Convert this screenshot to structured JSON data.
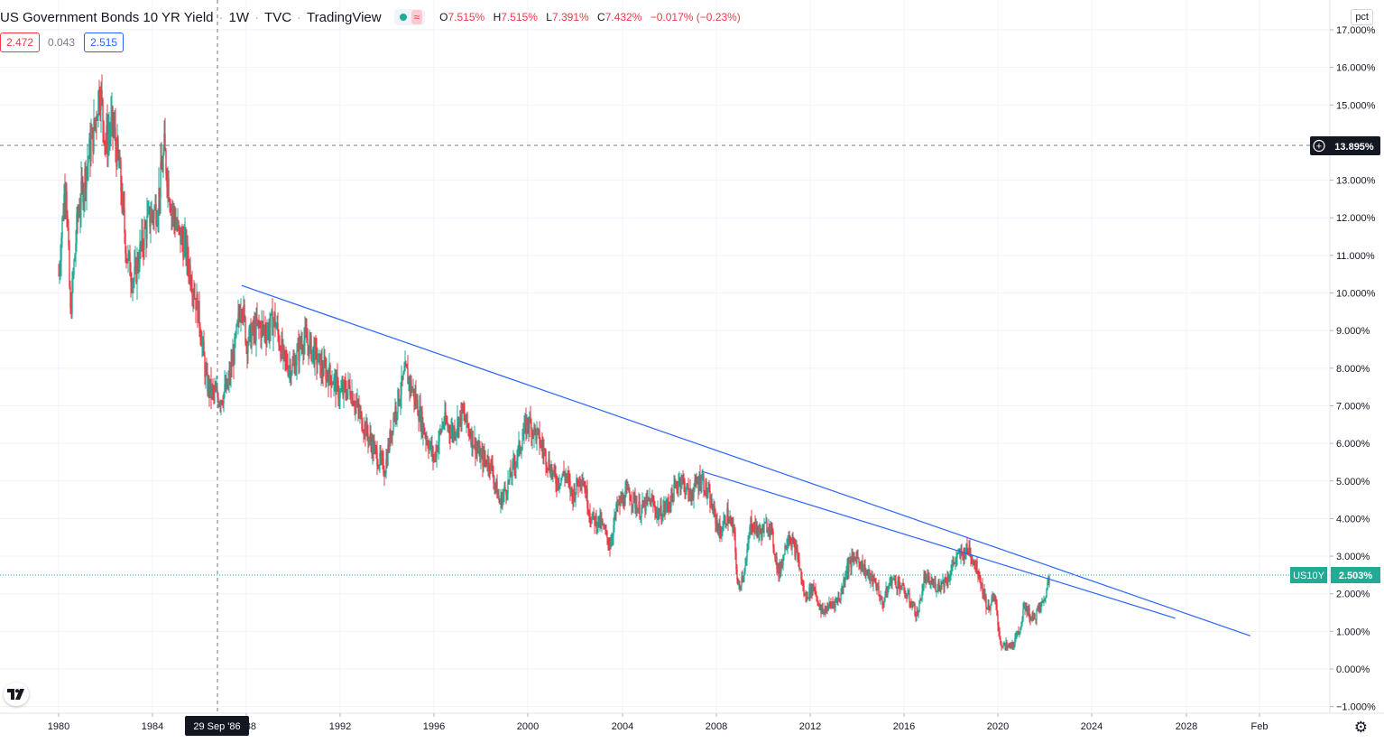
{
  "legend": {
    "symbol": "US Government Bonds 10 YR Yield",
    "interval": "1W",
    "exchange": "TVC",
    "source": "TradingView",
    "market_status_icon": "wave-icon",
    "ohlc": {
      "o_label": "O",
      "o": "7.515%",
      "h_label": "H",
      "h": "7.515%",
      "l_label": "L",
      "l": "7.391%",
      "c_label": "C",
      "c": "7.432%",
      "change": "−0.017% (−0.23%)"
    }
  },
  "values_row": {
    "bid": "2.472",
    "spread": "0.043",
    "ask": "2.515"
  },
  "scale_button": "pct",
  "crosshair": {
    "date_label": "29 Sep '86",
    "price_label": "13.895%"
  },
  "last_price": {
    "ticker": "US10Y",
    "value": "2.503%"
  },
  "colors": {
    "up": "#22ab94",
    "down": "#f23645",
    "trendline": "#2962ff",
    "grid": "#f0f3fa"
  },
  "chart_data": {
    "type": "candlestick",
    "title": "US Government Bonds 10 YR Yield · 1W · TVC · TradingView",
    "y_axis": {
      "unit": "%",
      "ticks": [
        "17.000%",
        "16.000%",
        "15.000%",
        "14.000%",
        "13.000%",
        "12.000%",
        "11.000%",
        "10.000%",
        "9.000%",
        "8.000%",
        "7.000%",
        "6.000%",
        "5.000%",
        "4.000%",
        "3.000%",
        "2.000%",
        "1.000%",
        "0.000%",
        "−1.000%"
      ],
      "ylim": [
        -1,
        17
      ]
    },
    "x_axis": {
      "ticks": [
        "1980",
        "1984",
        "",
        "1992",
        "1996",
        "2000",
        "2004",
        "2008",
        "2012",
        "2016",
        "2020",
        "2024",
        "2028",
        "Feb"
      ],
      "xlim": [
        1979.4,
        2031.5
      ]
    },
    "grid": true,
    "price_path": [
      {
        "t": 1980.0,
        "y": 10.5
      },
      {
        "t": 1980.3,
        "y": 13.2
      },
      {
        "t": 1980.5,
        "y": 9.4
      },
      {
        "t": 1980.8,
        "y": 12.0
      },
      {
        "t": 1981.2,
        "y": 13.4
      },
      {
        "t": 1981.5,
        "y": 14.3
      },
      {
        "t": 1981.75,
        "y": 15.5
      },
      {
        "t": 1982.0,
        "y": 14.0
      },
      {
        "t": 1982.3,
        "y": 14.5
      },
      {
        "t": 1982.6,
        "y": 13.2
      },
      {
        "t": 1982.9,
        "y": 11.0
      },
      {
        "t": 1983.2,
        "y": 10.3
      },
      {
        "t": 1983.5,
        "y": 11.2
      },
      {
        "t": 1983.8,
        "y": 11.9
      },
      {
        "t": 1984.2,
        "y": 12.3
      },
      {
        "t": 1984.5,
        "y": 13.8
      },
      {
        "t": 1984.8,
        "y": 12.3
      },
      {
        "t": 1985.1,
        "y": 11.6
      },
      {
        "t": 1985.4,
        "y": 11.2
      },
      {
        "t": 1985.7,
        "y": 10.3
      },
      {
        "t": 1986.0,
        "y": 9.3
      },
      {
        "t": 1986.3,
        "y": 7.6
      },
      {
        "t": 1986.6,
        "y": 7.3
      },
      {
        "t": 1986.9,
        "y": 7.2
      },
      {
        "t": 1987.2,
        "y": 7.5
      },
      {
        "t": 1987.5,
        "y": 8.5
      },
      {
        "t": 1987.8,
        "y": 9.9
      },
      {
        "t": 1988.0,
        "y": 8.7
      },
      {
        "t": 1988.5,
        "y": 9.1
      },
      {
        "t": 1988.9,
        "y": 9.0
      },
      {
        "t": 1989.2,
        "y": 9.3
      },
      {
        "t": 1989.6,
        "y": 8.2
      },
      {
        "t": 1990.0,
        "y": 8.0
      },
      {
        "t": 1990.4,
        "y": 8.8
      },
      {
        "t": 1990.8,
        "y": 8.5
      },
      {
        "t": 1991.2,
        "y": 8.0
      },
      {
        "t": 1991.6,
        "y": 7.8
      },
      {
        "t": 1992.0,
        "y": 7.3
      },
      {
        "t": 1992.4,
        "y": 7.5
      },
      {
        "t": 1992.8,
        "y": 6.8
      },
      {
        "t": 1993.2,
        "y": 6.2
      },
      {
        "t": 1993.6,
        "y": 5.6
      },
      {
        "t": 1993.9,
        "y": 5.3
      },
      {
        "t": 1994.3,
        "y": 6.8
      },
      {
        "t": 1994.8,
        "y": 7.9
      },
      {
        "t": 1995.2,
        "y": 7.2
      },
      {
        "t": 1995.6,
        "y": 6.3
      },
      {
        "t": 1996.0,
        "y": 5.6
      },
      {
        "t": 1996.4,
        "y": 6.6
      },
      {
        "t": 1996.8,
        "y": 6.3
      },
      {
        "t": 1997.2,
        "y": 6.8
      },
      {
        "t": 1997.6,
        "y": 6.2
      },
      {
        "t": 1998.0,
        "y": 5.6
      },
      {
        "t": 1998.4,
        "y": 5.5
      },
      {
        "t": 1998.8,
        "y": 4.4
      },
      {
        "t": 1999.2,
        "y": 5.0
      },
      {
        "t": 1999.6,
        "y": 5.8
      },
      {
        "t": 2000.0,
        "y": 6.6
      },
      {
        "t": 2000.4,
        "y": 6.2
      },
      {
        "t": 2000.8,
        "y": 5.6
      },
      {
        "t": 2001.2,
        "y": 5.0
      },
      {
        "t": 2001.6,
        "y": 5.2
      },
      {
        "t": 2001.9,
        "y": 4.6
      },
      {
        "t": 2002.3,
        "y": 5.2
      },
      {
        "t": 2002.7,
        "y": 4.0
      },
      {
        "t": 2003.1,
        "y": 3.9
      },
      {
        "t": 2003.5,
        "y": 3.3
      },
      {
        "t": 2003.8,
        "y": 4.3
      },
      {
        "t": 2004.3,
        "y": 4.7
      },
      {
        "t": 2004.8,
        "y": 4.2
      },
      {
        "t": 2005.2,
        "y": 4.5
      },
      {
        "t": 2005.6,
        "y": 4.1
      },
      {
        "t": 2006.0,
        "y": 4.4
      },
      {
        "t": 2006.5,
        "y": 5.1
      },
      {
        "t": 2006.9,
        "y": 4.6
      },
      {
        "t": 2007.4,
        "y": 5.1
      },
      {
        "t": 2007.8,
        "y": 4.4
      },
      {
        "t": 2008.2,
        "y": 3.6
      },
      {
        "t": 2008.5,
        "y": 4.1
      },
      {
        "t": 2008.8,
        "y": 3.6
      },
      {
        "t": 2008.95,
        "y": 2.1
      },
      {
        "t": 2009.3,
        "y": 2.8
      },
      {
        "t": 2009.5,
        "y": 3.9
      },
      {
        "t": 2009.9,
        "y": 3.6
      },
      {
        "t": 2010.3,
        "y": 3.9
      },
      {
        "t": 2010.7,
        "y": 2.5
      },
      {
        "t": 2011.1,
        "y": 3.6
      },
      {
        "t": 2011.5,
        "y": 3.0
      },
      {
        "t": 2011.8,
        "y": 1.9
      },
      {
        "t": 2012.2,
        "y": 2.2
      },
      {
        "t": 2012.5,
        "y": 1.5
      },
      {
        "t": 2012.9,
        "y": 1.7
      },
      {
        "t": 2013.3,
        "y": 1.9
      },
      {
        "t": 2013.6,
        "y": 2.7
      },
      {
        "t": 2014.0,
        "y": 3.0
      },
      {
        "t": 2014.5,
        "y": 2.5
      },
      {
        "t": 2014.9,
        "y": 2.2
      },
      {
        "t": 2015.1,
        "y": 1.7
      },
      {
        "t": 2015.5,
        "y": 2.4
      },
      {
        "t": 2015.9,
        "y": 2.2
      },
      {
        "t": 2016.4,
        "y": 1.7
      },
      {
        "t": 2016.6,
        "y": 1.4
      },
      {
        "t": 2016.9,
        "y": 2.4
      },
      {
        "t": 2017.4,
        "y": 2.2
      },
      {
        "t": 2017.9,
        "y": 2.4
      },
      {
        "t": 2018.2,
        "y": 2.9
      },
      {
        "t": 2018.8,
        "y": 3.2
      },
      {
        "t": 2019.2,
        "y": 2.6
      },
      {
        "t": 2019.6,
        "y": 1.6
      },
      {
        "t": 2019.9,
        "y": 1.9
      },
      {
        "t": 2020.15,
        "y": 0.7
      },
      {
        "t": 2020.3,
        "y": 0.6
      },
      {
        "t": 2020.6,
        "y": 0.6
      },
      {
        "t": 2020.9,
        "y": 0.9
      },
      {
        "t": 2021.2,
        "y": 1.7
      },
      {
        "t": 2021.5,
        "y": 1.3
      },
      {
        "t": 2021.8,
        "y": 1.6
      },
      {
        "t": 2022.0,
        "y": 1.8
      },
      {
        "t": 2022.25,
        "y": 2.5
      }
    ],
    "trendlines": [
      {
        "from": {
          "t": 1987.8,
          "y": 10.2
        },
        "to": {
          "t": 2030.8,
          "y": 0.88
        }
      },
      {
        "from": {
          "t": 2007.45,
          "y": 5.25
        },
        "to": {
          "t": 2027.6,
          "y": 1.35
        }
      }
    ]
  }
}
